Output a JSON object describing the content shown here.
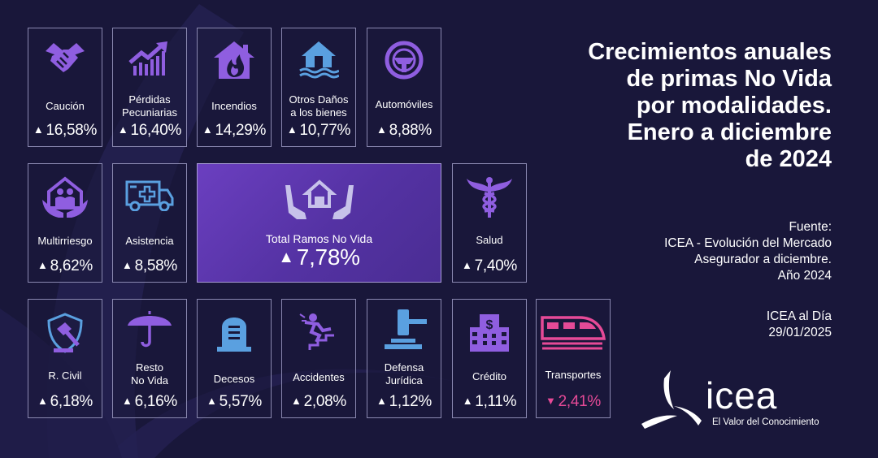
{
  "title": {
    "line1": "Crecimientos anuales",
    "line2": "de primas No Vida",
    "line3": "por modalidades.",
    "line4": "Enero a diciembre",
    "line5": "de 2024"
  },
  "source": {
    "line1": "Fuente:",
    "line2": "ICEA - Evolución del Mercado",
    "line3": "Asegurador a diciembre.",
    "line4": "Año 2024"
  },
  "dateline": {
    "line1": "ICEA al Día",
    "line2": "29/01/2025"
  },
  "logo": {
    "word": "icea",
    "tagline": "El Valor del Conocimiento"
  },
  "colors": {
    "background": "#19173a",
    "icon": "#8f5ee0",
    "icon_blue": "#5aa0e0",
    "positive": "#ffffff",
    "negative": "#e64a97",
    "total_tile": "#5b36ad"
  },
  "tiles": {
    "caucion": {
      "label1": "Caución",
      "label2": "",
      "arrow": "▲",
      "value": "16,58%",
      "icon": "handshake-icon"
    },
    "perdidas": {
      "label1": "Pérdidas",
      "label2": "Pecuniarias",
      "arrow": "▲",
      "value": "16,40%",
      "icon": "growth-chart-icon"
    },
    "incendios": {
      "label1": "Incendios",
      "label2": "",
      "arrow": "▲",
      "value": "14,29%",
      "icon": "house-fire-icon"
    },
    "otros_danos": {
      "label1": "Otros Daños",
      "label2": "a los bienes",
      "arrow": "▲",
      "value": "10,77%",
      "icon": "flooded-house-icon"
    },
    "automoviles": {
      "label1": "Automóviles",
      "label2": "",
      "arrow": "▲",
      "value": "8,88%",
      "icon": "steering-wheel-icon"
    },
    "multirriesgo": {
      "label1": "Multirriesgo",
      "label2": "",
      "arrow": "▲",
      "value": "8,62%",
      "icon": "family-house-icon"
    },
    "asistencia": {
      "label1": "Asistencia",
      "label2": "",
      "arrow": "▲",
      "value": "8,58%",
      "icon": "ambulance-icon"
    },
    "total": {
      "label1": "Total Ramos No Vida",
      "label2": "",
      "arrow": "▲",
      "value": "7,78%",
      "icon": "hands-house-icon"
    },
    "salud": {
      "label1": "Salud",
      "label2": "",
      "arrow": "▲",
      "value": "7,40%",
      "icon": "caduceus-icon"
    },
    "rcivil": {
      "label1": "R. Civil",
      "label2": "",
      "arrow": "▲",
      "value": "6,18%",
      "icon": "shield-gavel-icon"
    },
    "resto": {
      "label1": "Resto",
      "label2": "No Vida",
      "arrow": "▲",
      "value": "6,16%",
      "icon": "umbrella-icon"
    },
    "decesos": {
      "label1": "Decesos",
      "label2": "",
      "arrow": "▲",
      "value": "5,57%",
      "icon": "tombstone-icon"
    },
    "accidentes": {
      "label1": "Accidentes",
      "label2": "",
      "arrow": "▲",
      "value": "2,08%",
      "icon": "falling-person-icon"
    },
    "defensa": {
      "label1": "Defensa",
      "label2": "Jurídica",
      "arrow": "▲",
      "value": "1,12%",
      "icon": "gavel-icon"
    },
    "credito": {
      "label1": "Crédito",
      "label2": "",
      "arrow": "▲",
      "value": "1,11%",
      "icon": "bank-building-icon"
    },
    "transportes": {
      "label1": "Transportes",
      "label2": "",
      "arrow": "▼",
      "value": "2,41%",
      "icon": "train-icon"
    }
  }
}
